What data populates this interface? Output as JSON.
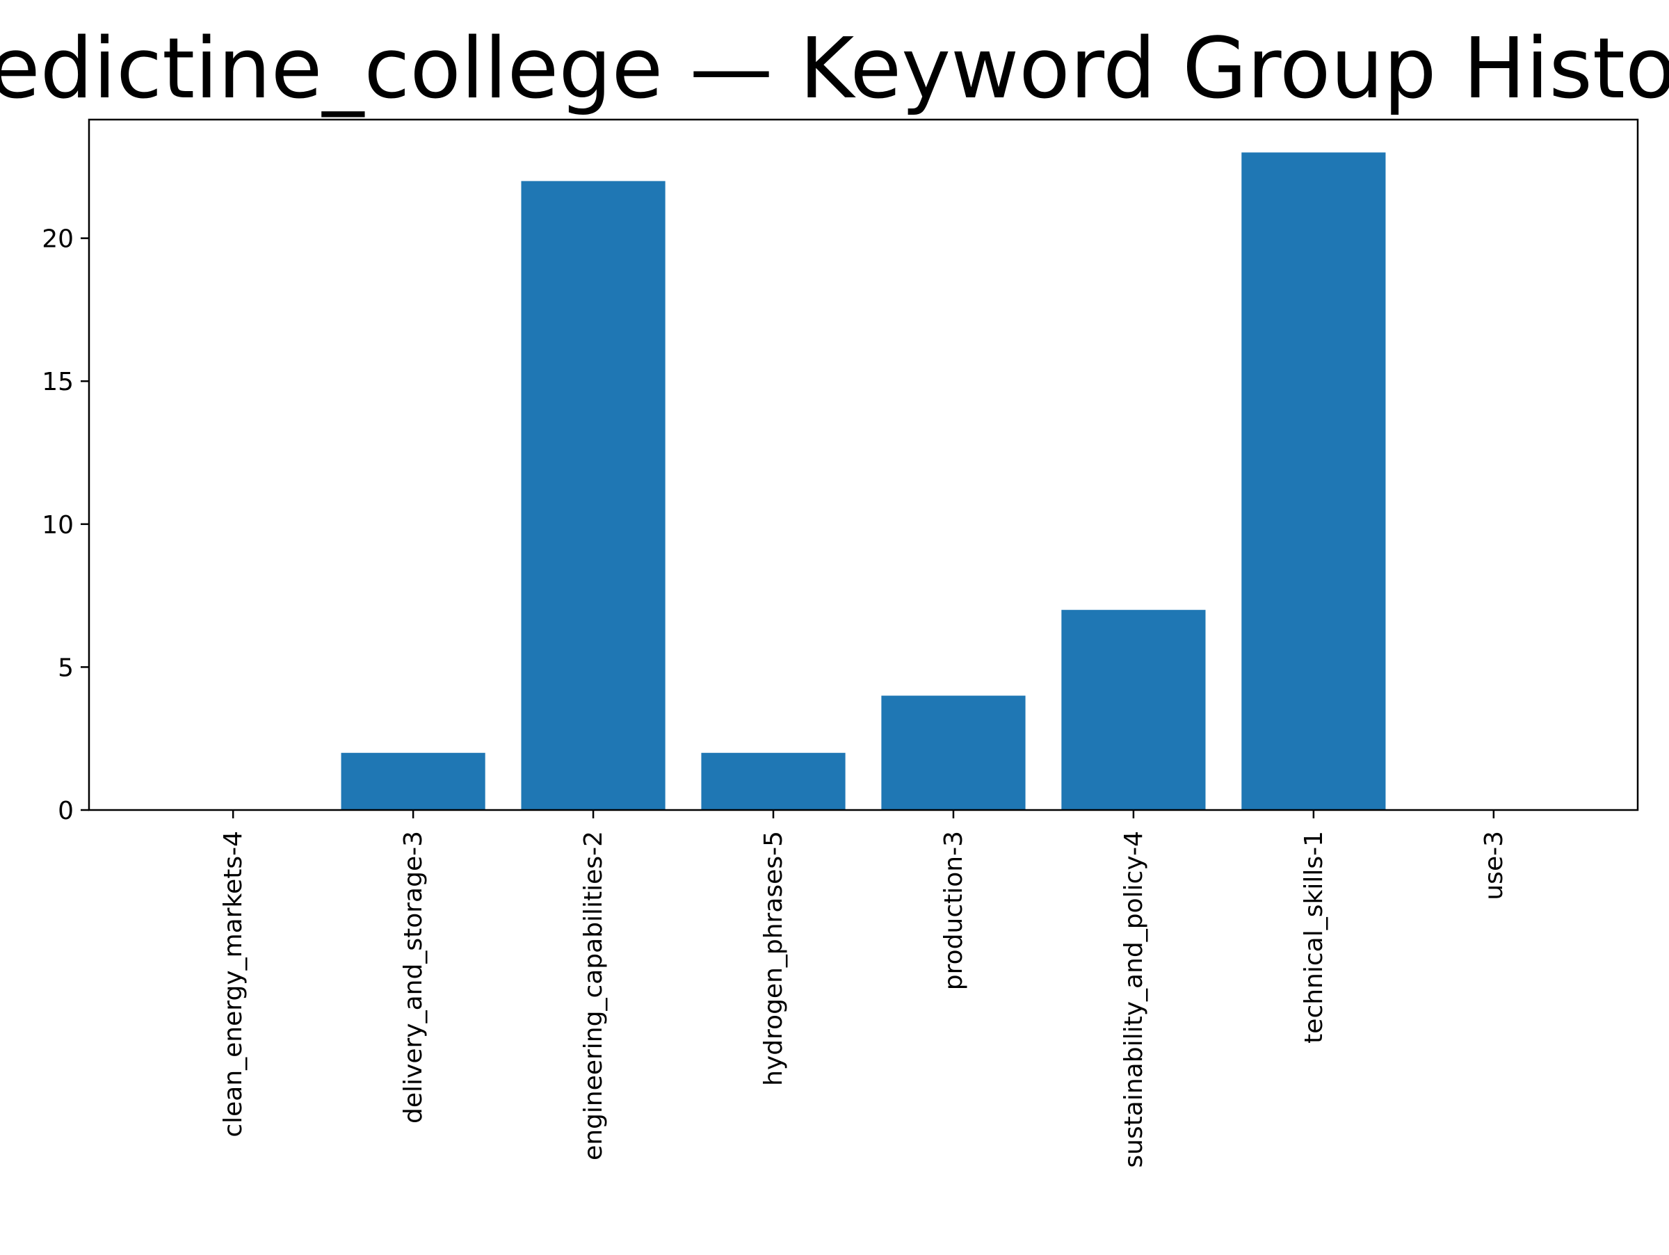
{
  "chart_data": {
    "type": "bar",
    "title": "benedictine_college — Keyword Group Histogram",
    "xlabel": "",
    "ylabel": "",
    "categories": [
      "clean_energy_markets-4",
      "delivery_and_storage-3",
      "engineering_capabilities-2",
      "hydrogen_phrases-5",
      "production-3",
      "sustainability_and_policy-4",
      "technical_skills-1",
      "use-3"
    ],
    "values": [
      0,
      2,
      22,
      2,
      4,
      7,
      23,
      0
    ],
    "ylim": [
      0,
      24.15
    ],
    "yticks": [
      0,
      5,
      10,
      15,
      20
    ],
    "bar_color": "#1f77b4",
    "grid": false,
    "legend": "none"
  }
}
